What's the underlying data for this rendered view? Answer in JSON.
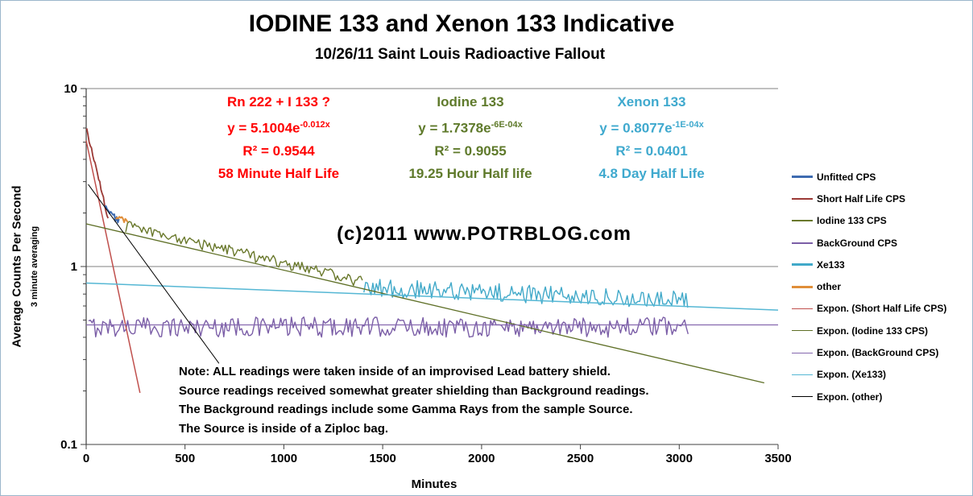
{
  "title": "IODINE 133 and Xenon 133 Indicative",
  "subtitle": "10/26/11 Saint Louis Radioactive Fallout",
  "watermark": "(c)2011  www.POTRBLOG.com",
  "axes": {
    "x_label": "Minutes",
    "y_label": "Average Counts Per Second",
    "y_label_sub": "3 minute averaging"
  },
  "annotations": {
    "red": {
      "title": "Rn 222 + I 133 ?",
      "eq_base": "y = 5.1004e",
      "eq_exp": "-0.012x",
      "r2": "R² = 0.9544",
      "half_life": "58 Minute Half Life",
      "color": "#FF0000"
    },
    "green": {
      "title": "Iodine 133",
      "eq_base": "y = 1.7378e",
      "eq_exp": "-6E-04x",
      "r2": "R² = 0.9055",
      "half_life": "19.25 Hour Half life",
      "color": "#5F7A2B"
    },
    "teal": {
      "title": "Xenon 133",
      "eq_base": "y = 0.8077e",
      "eq_exp": "-1E-04x",
      "r2": "R² = 0.0401",
      "half_life": "4.8 Day Half Life",
      "color": "#3FA9CE"
    }
  },
  "note": {
    "lines": [
      "Note:  ALL readings were taken inside of an improvised Lead battery shield.",
      "Source readings received somewhat greater shielding than Background readings.",
      "The Background readings include some Gamma Rays from the sample Source.",
      "The Source is inside of a Ziploc bag."
    ]
  },
  "legend": [
    {
      "label": "Unfitted CPS",
      "color": "#3E6BB0",
      "weight": 3
    },
    {
      "label": "Short Half Life CPS",
      "color": "#9C3A36",
      "weight": 2
    },
    {
      "label": "Iodine 133 CPS",
      "color": "#69782B",
      "weight": 2
    },
    {
      "label": "BackGround CPS",
      "color": "#7B5EA7",
      "weight": 2
    },
    {
      "label": "Xe133",
      "color": "#41A9C9",
      "weight": 3
    },
    {
      "label": "other",
      "color": "#E08E39",
      "weight": 3
    },
    {
      "label": "Expon. (Short Half Life CPS)",
      "color": "#C0504D",
      "weight": 1
    },
    {
      "label": "Expon. (Iodine 133 CPS)",
      "color": "#5E6F26",
      "weight": 1
    },
    {
      "label": "Expon. (BackGround CPS)",
      "color": "#8568AE",
      "weight": 1
    },
    {
      "label": "Expon. (Xe133)",
      "color": "#55B7D4",
      "weight": 1
    },
    {
      "label": "Expon. (other)",
      "color": "#000000",
      "weight": 1
    }
  ],
  "chart_data": {
    "type": "line",
    "title": "IODINE 133 and Xenon 133 Indicative",
    "subtitle": "10/26/11 Saint Louis Radioactive Fallout",
    "xlabel": "Minutes",
    "ylabel": "Average Counts Per Second",
    "y_scale": "log",
    "xlim": [
      0,
      3500
    ],
    "ylim": [
      0.1,
      10
    ],
    "x_ticks": [
      0,
      500,
      1000,
      1500,
      2000,
      2500,
      3000,
      3500
    ],
    "y_ticks": [
      10,
      1,
      0.1
    ],
    "y_tick_labels": [
      "10",
      "1",
      "0.1"
    ],
    "legend_position": "right",
    "series": [
      {
        "name": "BackGround CPS",
        "color": "#7B5EA7",
        "a": 0.46,
        "b": 0,
        "x_start": 12,
        "x_end": 3050,
        "step": 9,
        "noise": 0.13,
        "width": 1.4
      },
      {
        "name": "Short Half Life CPS",
        "color": "#9C3A36",
        "a": 6.0,
        "b": -0.0105,
        "x_start": 3,
        "x_end": 116,
        "step": 6,
        "noise": 0.035,
        "width": 1.8
      },
      {
        "name": "Unfitted CPS",
        "color": "#3E6BB0",
        "a": 2.9,
        "b": -0.003,
        "x_start": 94,
        "x_end": 168,
        "step": 6,
        "noise": 0.05,
        "width": 2
      },
      {
        "name": "other",
        "color": "#E08E39",
        "a": 2.1,
        "b": -0.0008,
        "x_start": 150,
        "x_end": 215,
        "step": 6,
        "noise": 0.045,
        "width": 2
      },
      {
        "name": "Iodine 133 CPS",
        "color": "#69782B",
        "a": 1.9,
        "b": -0.0006,
        "x_start": 200,
        "x_end": 1405,
        "step": 9,
        "noise": 0.075,
        "width": 1.4
      },
      {
        "name": "Xe133",
        "color": "#41A9C9",
        "a": 0.88,
        "b": -0.0001,
        "x_start": 1405,
        "x_end": 3050,
        "step": 9,
        "noise": 0.12,
        "width": 1.4
      }
    ],
    "trendlines": [
      {
        "name": "Expon. (Short Half Life CPS)",
        "color": "#C0504D",
        "a": 5.1004,
        "b": -0.012,
        "x_start": 0,
        "x_end": 272,
        "width": 1.5
      },
      {
        "name": "Expon. (Iodine 133 CPS)",
        "color": "#5E6F26",
        "a": 1.7378,
        "b": -0.0006,
        "x_start": 0,
        "x_end": 3430,
        "width": 1.3
      },
      {
        "name": "Expon. (BackGround CPS)",
        "color": "#8568AE",
        "a": 0.47,
        "b": 0,
        "x_start": 0,
        "x_end": 3500,
        "width": 1.2
      },
      {
        "name": "Expon. (Xe133)",
        "color": "#55B7D4",
        "a": 0.8077,
        "b": -0.0001,
        "x_start": 0,
        "x_end": 3500,
        "width": 1.5
      },
      {
        "name": "Expon. (other)",
        "color": "#000000",
        "a": 3.0,
        "b": -0.0035,
        "x_start": 10,
        "x_end": 672,
        "width": 1
      }
    ]
  }
}
